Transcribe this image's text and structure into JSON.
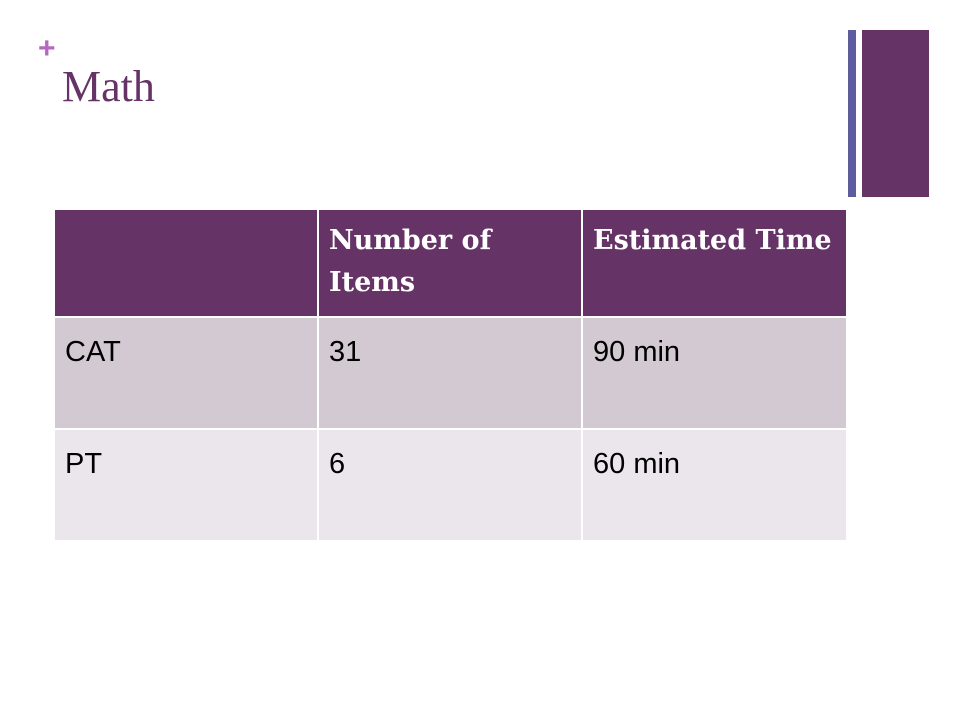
{
  "slide": {
    "plus_symbol": "+",
    "title": "Math"
  },
  "colors": {
    "plus": "#b667c0",
    "title": "#663366",
    "accent_thin": "#5c5c9e",
    "accent_thick": "#663366",
    "table_header_bg": "#663366",
    "row_odd_bg": "#d3c9d3",
    "row_even_bg": "#ebe6eb"
  },
  "table": {
    "headers": [
      "",
      "Number of Items",
      "Estimated Time"
    ],
    "rows": [
      [
        "CAT",
        "31",
        "90 min"
      ],
      [
        "PT",
        "6",
        "60 min"
      ]
    ]
  }
}
